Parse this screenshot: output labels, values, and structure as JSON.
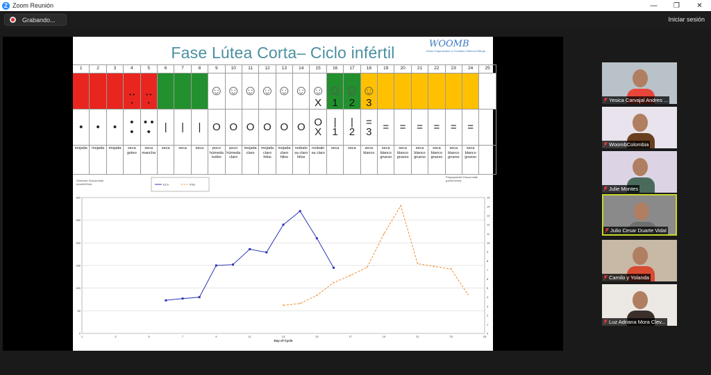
{
  "window": {
    "title": "Zoom Reunión",
    "minimize": "—",
    "restore": "❐",
    "close": "✕"
  },
  "toolbar": {
    "recording_label": "Grabando...",
    "sign_in": "Iniciar sesión"
  },
  "slide": {
    "title": "Fase Lútea Corta– Ciclo infértil",
    "logo": "WOOMB",
    "logo_sub": "World Organization of Ovulation Method Billings",
    "days": [
      "1",
      "2",
      "3",
      "4",
      "5",
      "6",
      "7",
      "8",
      "9",
      "10",
      "11",
      "12",
      "13",
      "14",
      "15",
      "16",
      "17",
      "18",
      "19",
      "20",
      "21",
      "22",
      "23",
      "24",
      "25"
    ],
    "colors": [
      "#e8261f",
      "#e8261f",
      "#e8261f",
      "#e8261f",
      "#e8261f",
      "#22902e",
      "#22902e",
      "#22902e",
      "#ffffff",
      "#ffffff",
      "#ffffff",
      "#ffffff",
      "#ffffff",
      "#ffffff",
      "#ffffff",
      "#22902e",
      "#22902e",
      "#ffc000",
      "#ffc000",
      "#ffc000",
      "#ffc000",
      "#ffc000",
      "#ffc000",
      "#ffc000",
      "#ffffff"
    ],
    "color_marks": [
      "",
      "",
      "",
      "• •\n•",
      "• •\n•",
      "",
      "",
      "",
      "",
      "",
      "",
      "",
      "",
      "",
      "X",
      "1",
      "2",
      "3",
      "",
      "",
      "",
      "",
      "",
      "",
      ""
    ],
    "baby_days": [
      9,
      10,
      11,
      12,
      13,
      14,
      15,
      16,
      17,
      18
    ],
    "symbols": [
      "•",
      "•",
      "•",
      "•\n•",
      "• •\n•",
      "|",
      "|",
      "|",
      "O",
      "O",
      "O",
      "O",
      "O",
      "O",
      "O\nX",
      "|\n1",
      "|\n2",
      "=\n3",
      "=",
      "=",
      "=",
      "=",
      "=",
      "=",
      ""
    ],
    "descriptions": [
      "mojada",
      "mojada",
      "mojada",
      "seca goteo",
      "seca mancha",
      "seca",
      "seca",
      "seca",
      "poco húmeda turbio",
      "poco húmeda claro",
      "mojada claro",
      "mojada claro hilos",
      "mojada claro hilos",
      "resbalo sa claro hilos",
      "resbalo sa claro",
      "seca",
      "seca",
      "seca blanco",
      "seca blanco grueso",
      "seca blanco grueso",
      "seca blanco grueso",
      "seca blanco grueso",
      "seca blanco grueso",
      "seca blanco grueso",
      ""
    ]
  },
  "chart_data": {
    "type": "line",
    "left_axis_label": "Oestrone Glucuronide\n(nmol/24hrs)",
    "right_axis_label": "Pregnanediol Glucuronide\n(µmol/24hrs)",
    "xlabel": "Day of Cycle",
    "xlim": [
      1,
      25
    ],
    "ylim_left": [
      0,
      300
    ],
    "ylim_right": [
      0,
      15
    ],
    "x_ticks": [
      "1",
      "3",
      "5",
      "7",
      "9",
      "11",
      "13",
      "15",
      "17",
      "19",
      "21",
      "23",
      "25"
    ],
    "y_ticks_left": [
      "0",
      "50",
      "100",
      "150",
      "200",
      "250",
      "300"
    ],
    "y_ticks_right": [
      "0",
      "1",
      "2",
      "3",
      "4",
      "5",
      "6",
      "7",
      "8",
      "9",
      "10",
      "11",
      "12",
      "13",
      "14",
      "15"
    ],
    "series": [
      {
        "name": "E1G",
        "axis": "left",
        "color": "#2b35b8",
        "x": [
          6,
          7,
          8,
          9,
          10,
          11,
          12,
          13,
          14,
          15,
          16
        ],
        "values": [
          73,
          77,
          80,
          150,
          152,
          186,
          179,
          240,
          270,
          210,
          145
        ]
      },
      {
        "name": "PdG",
        "axis": "right",
        "color": "#f08b2a",
        "x": [
          13,
          14,
          15,
          16,
          17,
          18,
          19,
          20,
          21,
          22,
          23,
          24
        ],
        "values": [
          3.1,
          3.3,
          4.2,
          5.6,
          6.4,
          7.3,
          11.0,
          14.1,
          7.7,
          7.4,
          7.1,
          4.3
        ]
      }
    ]
  },
  "participants": [
    {
      "name": "Yesica Carvajal Andres ...",
      "bg": "#b9c2c9",
      "shirt": "#e8463a"
    },
    {
      "name": "WoombColombia",
      "bg": "#e8e3ec",
      "shirt": "#6a3f1f"
    },
    {
      "name": "Julie Montes",
      "bg": "#dcd4e4",
      "shirt": "#4a6b5c"
    },
    {
      "name": "Julio Cesar Duarte Vidal",
      "bg": "#8a8a8a",
      "shirt": "#6f6f6f"
    },
    {
      "name": "Camilo y Yolanda",
      "bg": "#c7b9a6",
      "shirt": "#d94a33"
    },
    {
      "name": "Luz Adriana Mora Clev...",
      "bg": "#ece8e4",
      "shirt": "#3b2f2a"
    }
  ]
}
